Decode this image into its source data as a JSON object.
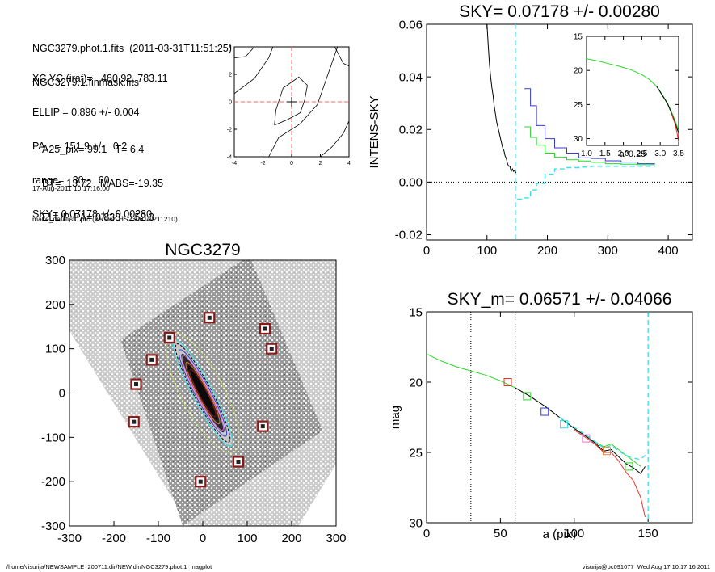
{
  "header": {
    "lines_top": [
      "NGC3279.phot.1.fits  (2011-03-31T11:51:25)",
      "NGC3279.1.finmask.fits"
    ],
    "lines_params": [
      "XC,YC (iraf)=   480.92, 783.11",
      "ELLIP = 0.896 +/- 0.004",
      "PA    = 151.9 +/-   0.2",
      "range=   30.-   60.",
      "SKY= 0.07178 +/- 0.00280"
    ],
    "lines_derived": [
      "A25_pix= 99.1   T= 6.4",
      "BT=  13.72   MABS=-19.35",
      "ELLIP, PA= 0.833   152.3"
    ],
    "lines_meta": [
      "17-Aug-2011 10:17:16.00",
      "make_datalist0.pro (version HS230610/211210)"
    ]
  },
  "footer": {
    "left": "/home/visurija/NEWSAMPLE_200711.dir/NEW.dir/NGC3279.phot.1_magplot",
    "right": "visurija@pc091077  Wed Aug 17 10:17:16 2011"
  },
  "colors": {
    "black": "#000000",
    "red": "#e8332a",
    "green": "#2bd62b",
    "blue": "#3a3ad6",
    "cyan": "#35e0e8",
    "magenta": "#e070e0",
    "orange": "#f08030",
    "yellowgreen": "#c8dc60",
    "maroon": "#8b1a1a",
    "dash_red": "#ff6060"
  },
  "chart_data": [
    {
      "id": "contour",
      "type": "contour",
      "title": "",
      "xlim": [
        -4,
        4
      ],
      "ylim": [
        -4,
        4
      ],
      "xticks": [
        -4,
        -2,
        0,
        2,
        4
      ],
      "yticks": [
        -4,
        -2,
        0,
        2,
        4
      ],
      "tick_labels_x": [
        "-4",
        "-2",
        "0",
        "2",
        "4"
      ],
      "tick_labels_y": [
        "-4",
        "-2",
        "0",
        "2",
        "4"
      ],
      "dashed_cross_at": [
        0,
        0
      ],
      "contours": [
        [
          [
            -4,
            3.2
          ],
          [
            -3.2,
            3.3
          ],
          [
            -2.6,
            4
          ]
        ],
        [
          [
            -4,
            0.6
          ],
          [
            -2.6,
            1.7
          ],
          [
            -1.6,
            3.2
          ],
          [
            -1.3,
            4
          ]
        ],
        [
          [
            -1.2,
            -1.7
          ],
          [
            -1.1,
            -0.6
          ],
          [
            -0.6,
            1.0
          ],
          [
            0.5,
            1.8
          ],
          [
            1.1,
            1.2
          ],
          [
            0.9,
            0.1
          ],
          [
            0.6,
            -0.8
          ],
          [
            -0.3,
            -1.3
          ],
          [
            -1.2,
            -1.7
          ]
        ],
        [
          [
            -1.6,
            -4
          ],
          [
            -0.9,
            -2.6
          ],
          [
            0.6,
            -1.6
          ],
          [
            1.8,
            -0.2
          ],
          [
            2.6,
            2.2
          ],
          [
            3.2,
            4
          ]
        ],
        [
          [
            2.0,
            -4
          ],
          [
            2.8,
            -3.3
          ],
          [
            3.6,
            -2.3
          ],
          [
            4,
            -1.4
          ]
        ],
        [
          [
            3.0,
            4
          ],
          [
            3.6,
            2.8
          ],
          [
            4,
            2.6
          ]
        ]
      ],
      "center_marker": [
        0.0,
        0.0
      ]
    },
    {
      "id": "sky",
      "type": "line",
      "title": "SKY= 0.07178 +/- 0.00280",
      "xlabel": "",
      "ylabel": "INTENS-SKY",
      "xlim": [
        0,
        440
      ],
      "ylim": [
        -0.022,
        0.06
      ],
      "xticks": [
        0,
        100,
        200,
        300,
        400
      ],
      "yticks": [
        -0.02,
        0.0,
        0.02,
        0.04,
        0.06
      ],
      "tick_labels_x": [
        "0",
        "100",
        "200",
        "300",
        "400"
      ],
      "tick_labels_y": [
        "-0.02",
        "0.00",
        "0.02",
        "0.04",
        "0.06"
      ],
      "zero_line": 0.0,
      "vline_cyan": 147,
      "series": [
        {
          "color": "black",
          "style": "solid",
          "x": [
            100,
            102,
            104,
            106,
            108,
            110,
            112,
            114,
            116,
            118,
            120,
            122,
            124,
            126,
            128,
            130,
            132,
            134,
            136,
            138,
            140,
            142,
            144,
            146,
            148
          ],
          "y": [
            0.06,
            0.052,
            0.045,
            0.04,
            0.036,
            0.033,
            0.029,
            0.026,
            0.023,
            0.021,
            0.019,
            0.017,
            0.015,
            0.013,
            0.012,
            0.01,
            0.009,
            0.007,
            0.006,
            0.006,
            0.004,
            0.005,
            0.004,
            0.0045,
            0.0035
          ]
        },
        {
          "color": "blue",
          "style": "step",
          "x": [
            162,
            172,
            182,
            196,
            212,
            232,
            252,
            272,
            296,
            322,
            350,
            370
          ],
          "y": [
            0.0355,
            0.029,
            0.0215,
            0.0165,
            0.013,
            0.011,
            0.0092,
            0.009,
            0.0081,
            0.0076,
            0.007,
            0.007
          ]
        },
        {
          "color": "green",
          "style": "step",
          "x": [
            162,
            172,
            182,
            196,
            212,
            232,
            252,
            272,
            296,
            322,
            350,
            370
          ],
          "y": [
            0.021,
            0.017,
            0.014,
            0.011,
            0.0095,
            0.0085,
            0.008,
            0.0075,
            0.007,
            0.0068,
            0.0066,
            0.0066
          ]
        },
        {
          "color": "cyan",
          "style": "dash",
          "x": [
            150,
            162,
            172,
            182,
            196,
            212,
            232,
            252,
            272,
            296,
            322,
            350,
            370
          ],
          "y": [
            -0.0065,
            -0.006,
            -0.003,
            -0.0005,
            0.003,
            0.005,
            0.0055,
            0.0057,
            0.006,
            0.006,
            0.006,
            0.006,
            0.006
          ]
        }
      ]
    },
    {
      "id": "sky_inset",
      "type": "line",
      "title": "",
      "xlabel": "a^0.25",
      "ylabel": "",
      "xlim": [
        1.0,
        3.5
      ],
      "ylim": [
        15,
        31
      ],
      "reversed_y": true,
      "xticks": [
        1.0,
        1.5,
        2.0,
        2.5,
        3.0,
        3.5
      ],
      "yticks": [
        15,
        20,
        25,
        30
      ],
      "tick_labels_x": [
        "1.0",
        "1.5",
        "2.0",
        "2.5",
        "3.0",
        "3.5"
      ],
      "tick_labels_y": [
        "15",
        "20",
        "25",
        "30"
      ],
      "series": [
        {
          "color": "green",
          "x": [
            1.0,
            1.3,
            1.6,
            1.9,
            2.2,
            2.5,
            2.7,
            2.9,
            3.05,
            3.2,
            3.3,
            3.4,
            3.46,
            3.5
          ],
          "y": [
            18.3,
            18.6,
            19.0,
            19.4,
            19.9,
            20.6,
            21.3,
            22.3,
            23.5,
            24.8,
            26.0,
            27.3,
            28.2,
            29.0
          ]
        },
        {
          "color": "black",
          "x": [
            2.9,
            3.05,
            3.2,
            3.3,
            3.4,
            3.46,
            3.5
          ],
          "y": [
            22.3,
            23.6,
            24.9,
            26.2,
            27.6,
            28.6,
            29.2
          ]
        },
        {
          "color": "red",
          "x": [
            3.3,
            3.4,
            3.46,
            3.5
          ],
          "y": [
            26.3,
            27.8,
            29.3,
            30.5
          ]
        }
      ]
    },
    {
      "id": "image",
      "type": "image",
      "title": "NGC3279",
      "xlim": [
        -300,
        300
      ],
      "ylim": [
        -300,
        300
      ],
      "xticks": [
        -300,
        -200,
        -100,
        0,
        100,
        200,
        300
      ],
      "yticks": [
        -300,
        -200,
        -100,
        0,
        100,
        200,
        300
      ],
      "tick_labels_x": [
        "-300",
        "-200",
        "-100",
        "0",
        "100",
        "200",
        "300"
      ],
      "tick_labels_y": [
        "-300",
        "-200",
        "-100",
        "0",
        "100",
        "200",
        "300"
      ],
      "field_corners": [
        [
          -185,
          120
        ],
        [
          105,
          310
        ],
        [
          270,
          -85
        ],
        [
          -45,
          -300
        ]
      ],
      "sky_boxes": [
        [
          15,
          170
        ],
        [
          -75,
          125
        ],
        [
          -115,
          75
        ],
        [
          -150,
          20
        ],
        [
          -155,
          -65
        ],
        [
          140,
          145
        ],
        [
          155,
          100
        ],
        [
          -5,
          -200
        ],
        [
          80,
          -155
        ],
        [
          135,
          -75
        ]
      ],
      "galaxy_ellipses": [
        {
          "a": 150,
          "b": 48,
          "color": "yellowgreen",
          "dash": true
        },
        {
          "a": 135,
          "b": 23,
          "color": "cyan"
        },
        {
          "a": 125,
          "b": 20,
          "color": "black",
          "dash": true
        },
        {
          "a": 110,
          "b": 17,
          "color": "blue"
        },
        {
          "a": 95,
          "b": 14,
          "color": "magenta"
        },
        {
          "a": 78,
          "b": 12,
          "color": "orange"
        },
        {
          "a": 60,
          "b": 9,
          "color": "maroon"
        }
      ],
      "galaxy_pa_deg": 152
    },
    {
      "id": "mag",
      "type": "line",
      "title": "SKY_m=  0.06571 +/- 0.04066",
      "xlabel": "a (pix)",
      "ylabel": "mag",
      "xlim": [
        0,
        180
      ],
      "ylim": [
        15,
        30
      ],
      "reversed_y": true,
      "xticks": [
        0,
        50,
        100,
        150
      ],
      "yticks": [
        15,
        20,
        25,
        30
      ],
      "tick_labels_x": [
        "0",
        "50",
        "100",
        "150"
      ],
      "tick_labels_y": [
        "15",
        "20",
        "25",
        "30"
      ],
      "vlines_dotted": [
        30,
        60
      ],
      "vline_cyan": 150,
      "series": [
        {
          "color": "green",
          "x": [
            0,
            10,
            20,
            30,
            40,
            50,
            60,
            70,
            80,
            90,
            100,
            110,
            115,
            120,
            125,
            130,
            135,
            140,
            145
          ],
          "y": [
            18.0,
            18.5,
            18.9,
            19.2,
            19.5,
            19.9,
            20.4,
            21.0,
            21.7,
            22.5,
            23.3,
            24.0,
            24.3,
            24.6,
            24.4,
            24.8,
            25.2,
            25.6,
            26.0
          ]
        },
        {
          "color": "black",
          "x": [
            60,
            70,
            80,
            90,
            100,
            110,
            115,
            120,
            125,
            130,
            135,
            140,
            145,
            148
          ],
          "y": [
            20.4,
            21.0,
            21.7,
            22.5,
            23.3,
            24.0,
            24.4,
            24.9,
            24.8,
            25.3,
            25.8,
            26.1,
            26.5,
            26.0
          ]
        },
        {
          "color": "red",
          "x": [
            100,
            110,
            115,
            120,
            125,
            130,
            135,
            140,
            145,
            148
          ],
          "y": [
            23.4,
            24.1,
            24.5,
            25.0,
            25.0,
            25.6,
            26.4,
            27.0,
            28.2,
            29.6
          ]
        },
        {
          "color": "cyan",
          "x": [
            90,
            100,
            110,
            115,
            120,
            125,
            130,
            135,
            140,
            145,
            148
          ],
          "y": [
            22.5,
            23.2,
            23.9,
            24.3,
            24.7,
            24.5,
            24.9,
            25.2,
            25.4,
            25.5,
            25.2
          ],
          "dash": true
        }
      ],
      "markers": [
        {
          "x": 55,
          "y": 20.0,
          "color": "red"
        },
        {
          "x": 68,
          "y": 21.0,
          "color": "green"
        },
        {
          "x": 80,
          "y": 22.1,
          "color": "blue"
        },
        {
          "x": 93,
          "y": 23.0,
          "color": "cyan"
        },
        {
          "x": 108,
          "y": 24.0,
          "color": "magenta"
        },
        {
          "x": 122,
          "y": 24.9,
          "color": "orange"
        },
        {
          "x": 137,
          "y": 26.0,
          "color": "green"
        }
      ]
    }
  ]
}
